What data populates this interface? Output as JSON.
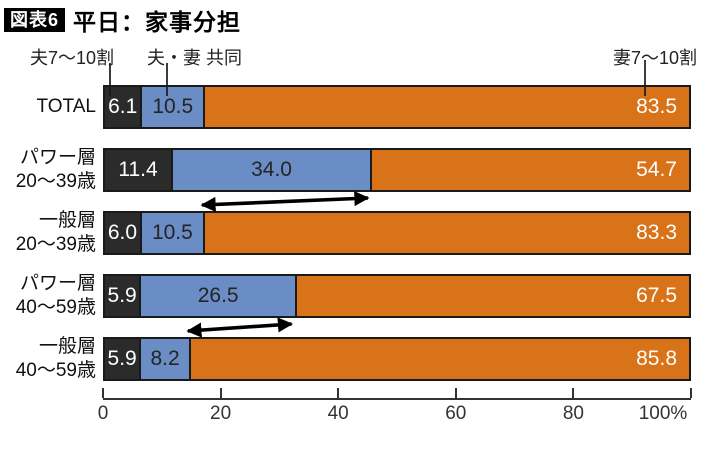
{
  "title": {
    "badge": "図表6",
    "text": "平日：家事分担"
  },
  "legend": [
    {
      "label": "夫7〜10割",
      "color": "#2b2b2b"
    },
    {
      "label": "夫・妻 共同",
      "color": "#6b8dc5"
    },
    {
      "label": "妻7〜10割",
      "color": "#d9731a"
    }
  ],
  "chart_data": {
    "type": "bar",
    "orientation": "horizontal-stacked",
    "title": "平日：家事分担",
    "figure_badge": "図表6",
    "categories": [
      [
        "TOTAL"
      ],
      [
        "パワー層",
        "20〜39歳"
      ],
      [
        "一般層",
        "20〜39歳"
      ],
      [
        "パワー層",
        "40〜59歳"
      ],
      [
        "一般層",
        "40〜59歳"
      ]
    ],
    "series": [
      {
        "name": "夫7〜10割",
        "color": "#2b2b2b",
        "values": [
          6.1,
          11.4,
          6.0,
          5.9,
          5.9
        ]
      },
      {
        "name": "夫・妻 共同",
        "color": "#6b8dc5",
        "values": [
          10.5,
          34.0,
          10.5,
          26.5,
          8.2
        ]
      },
      {
        "name": "妻7〜10割",
        "color": "#d9731a",
        "values": [
          83.5,
          54.7,
          83.3,
          67.5,
          85.8
        ]
      }
    ],
    "xlim": [
      0,
      100
    ],
    "x_ticks": [
      "0",
      "20",
      "40",
      "60",
      "80",
      "100%"
    ],
    "grid": false,
    "legend_position": "top",
    "annotations": {
      "comparison_arrows": [
        {
          "between_categories": [
            "パワー層 20〜39歳",
            "一般層 20〜39歳"
          ],
          "at_boundary_after_series": "夫・妻 共同"
        },
        {
          "between_categories": [
            "パワー層 40〜59歳",
            "一般層 40〜59歳"
          ],
          "at_boundary_after_series": "夫・妻 共同"
        }
      ]
    }
  }
}
